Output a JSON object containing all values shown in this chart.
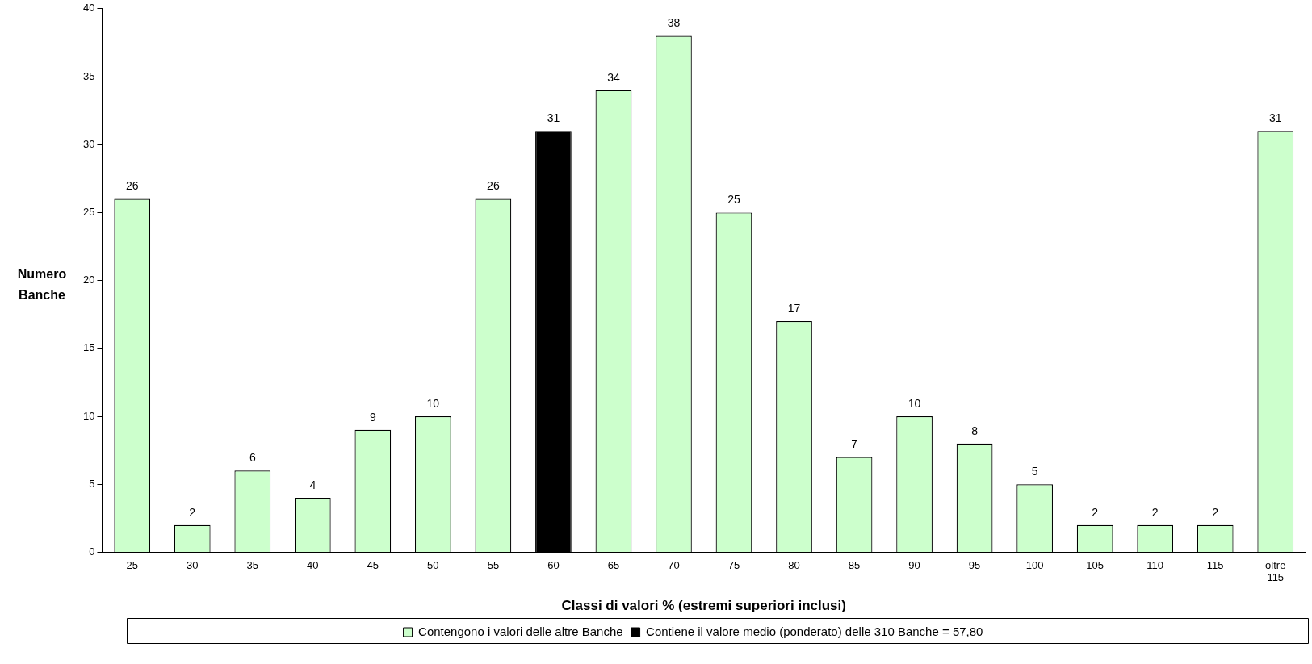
{
  "chart_data": {
    "type": "bar",
    "stacked": true,
    "categories": [
      "25",
      "30",
      "35",
      "40",
      "45",
      "50",
      "55",
      "60",
      "65",
      "70",
      "75",
      "80",
      "85",
      "90",
      "95",
      "100",
      "105",
      "110",
      "115",
      "oltre 115"
    ],
    "series": [
      {
        "name": "Contengono i valori delle altre Banche",
        "color": "#ccffcc",
        "values": [
          26,
          2,
          6,
          4,
          9,
          10,
          26,
          null,
          34,
          38,
          25,
          17,
          7,
          10,
          8,
          5,
          2,
          2,
          2,
          31
        ]
      },
      {
        "name": "Contiene il valore medio (ponderato) delle 310 Banche = 57,80",
        "color": "#000000",
        "values": [
          null,
          null,
          null,
          null,
          null,
          null,
          null,
          31,
          null,
          null,
          null,
          null,
          null,
          null,
          null,
          null,
          null,
          null,
          null,
          null
        ]
      }
    ],
    "xlabel": "Classi di valori % (estremi superiori inclusi)",
    "ylabel": "Numero Banche",
    "ylim": [
      0,
      40
    ],
    "yticks": [
      0,
      5,
      10,
      15,
      20,
      25,
      30,
      35,
      40
    ],
    "grid": false,
    "legend": "bottom",
    "data_labels": true
  }
}
